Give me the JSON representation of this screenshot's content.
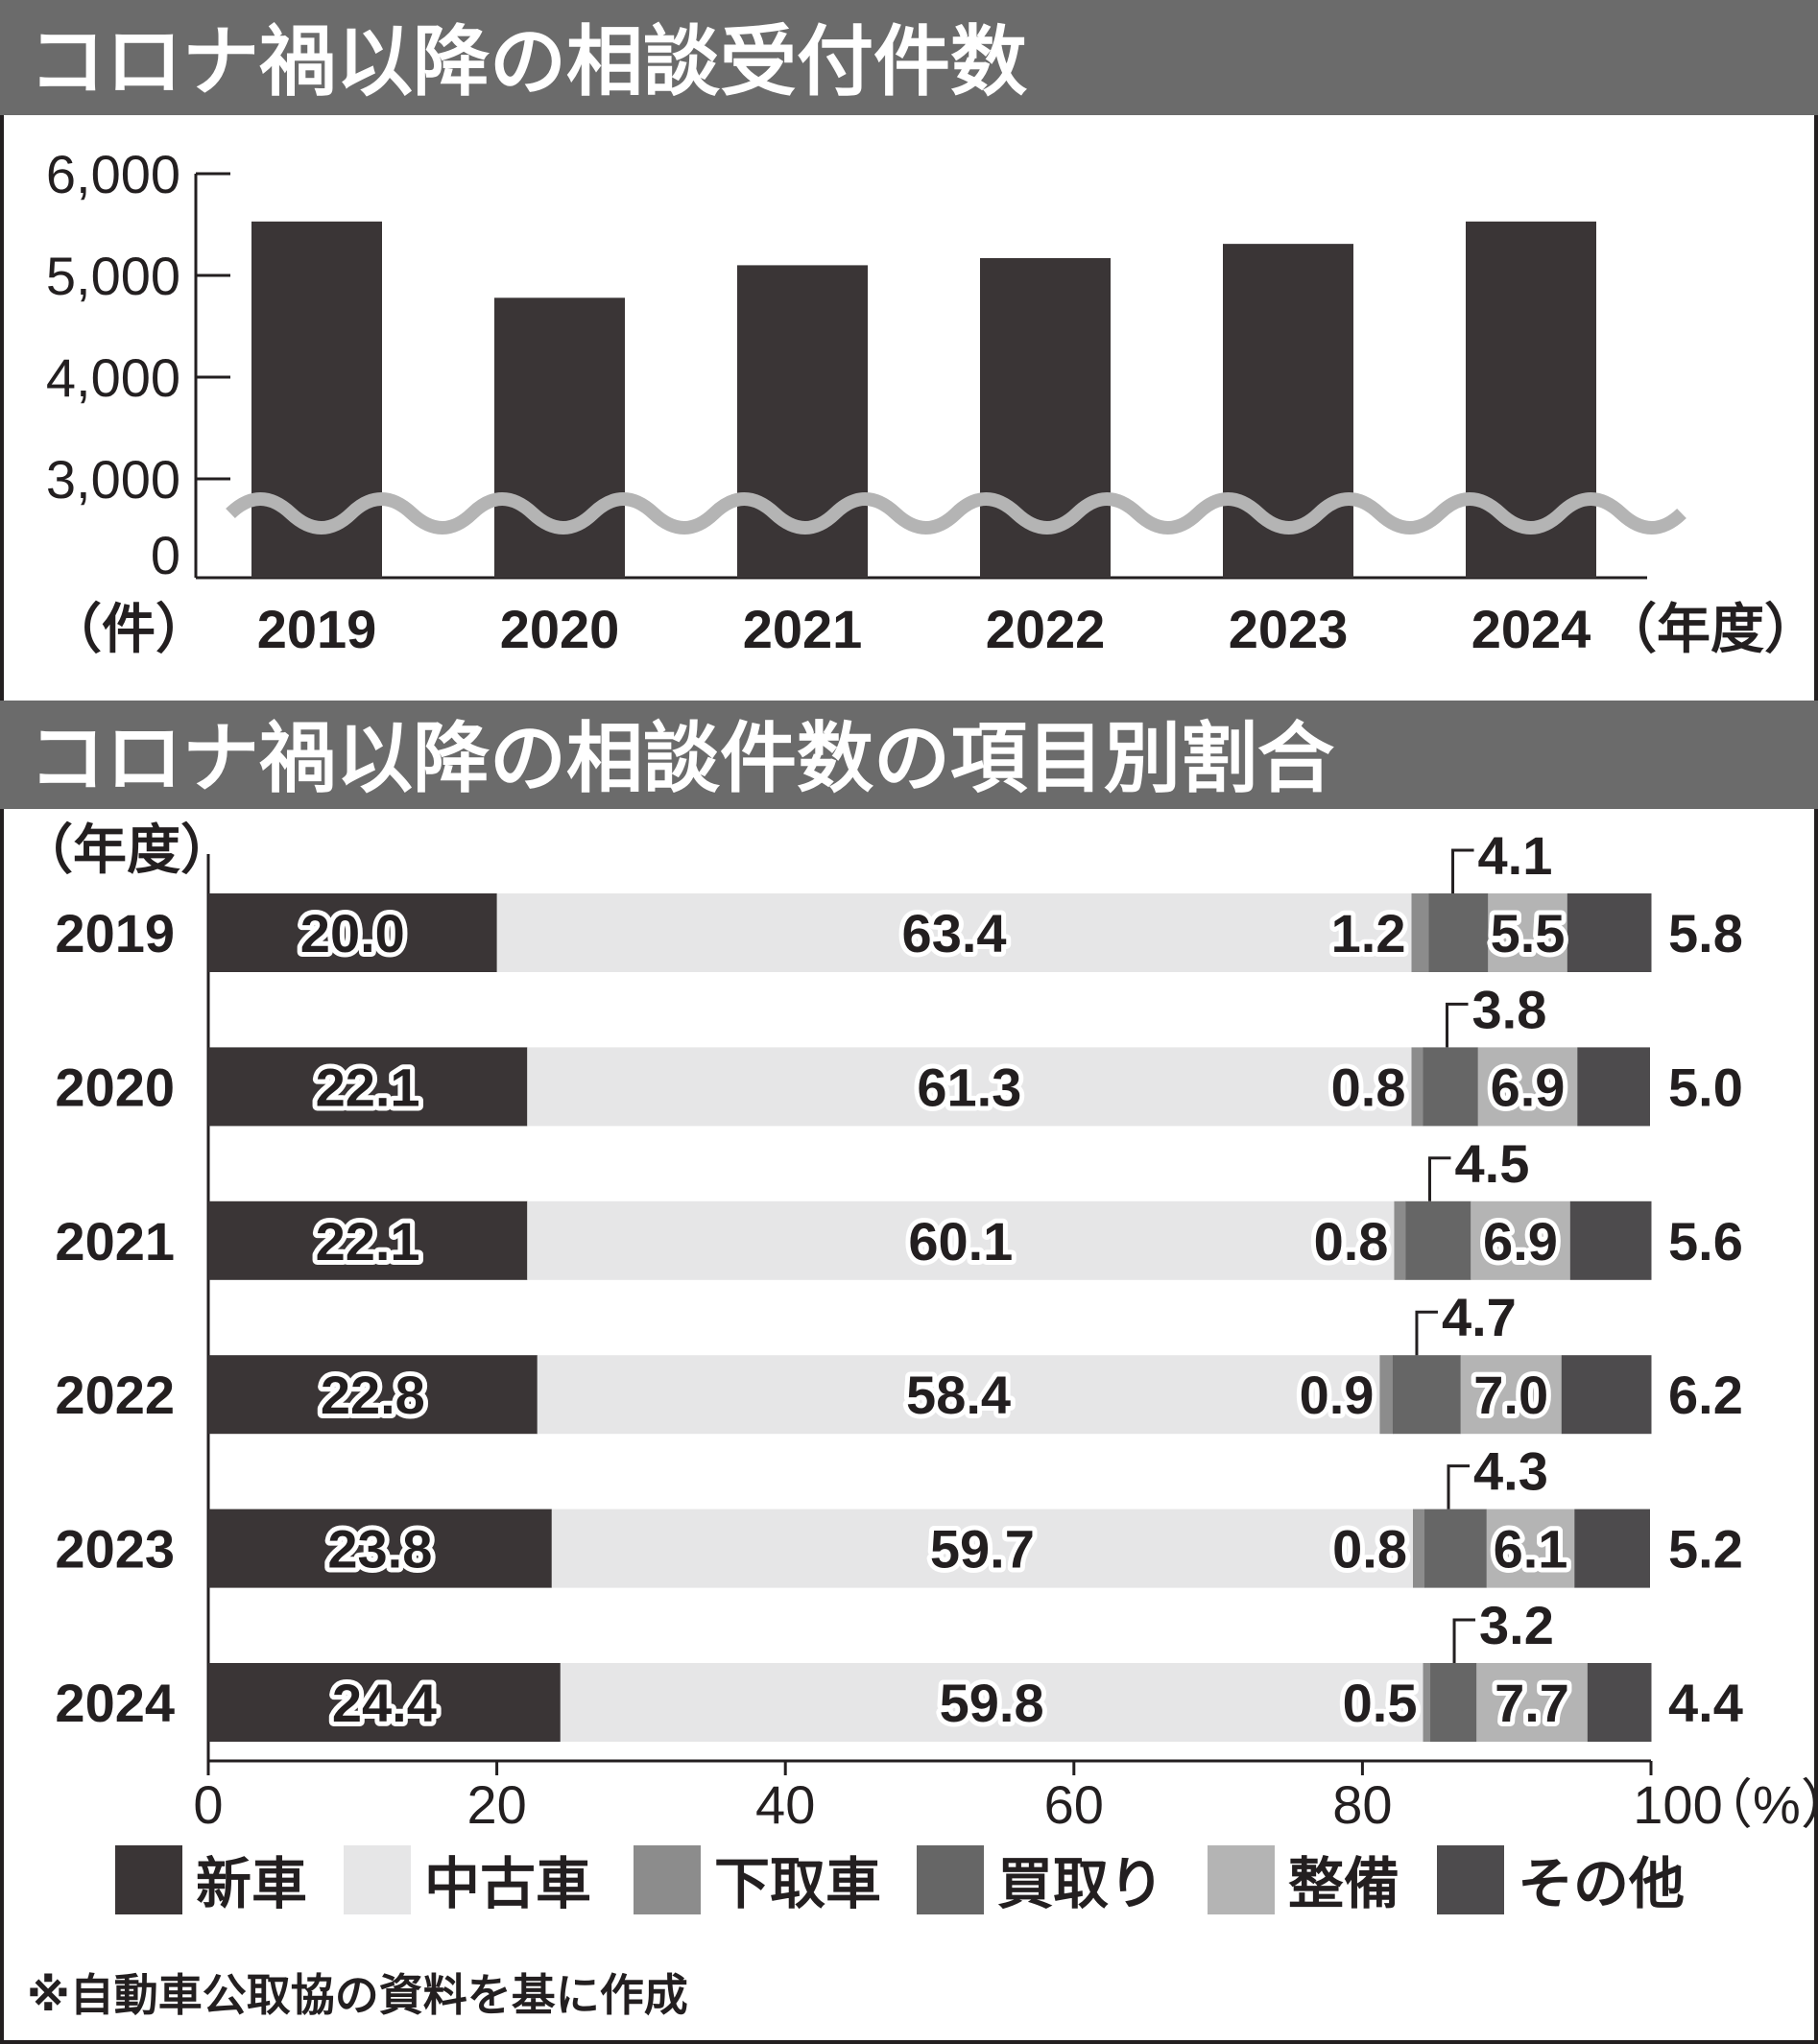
{
  "chart_data": [
    {
      "type": "bar",
      "title": "コロナ禍以降の相談受付件数",
      "ylabel": "（件）",
      "xlabel": "（年度）",
      "categories": [
        "2019",
        "2020",
        "2021",
        "2022",
        "2023",
        "2024"
      ],
      "values": [
        5530,
        4780,
        5100,
        5170,
        5310,
        5530
      ],
      "yticks": [
        "0",
        "3,000",
        "4,000",
        "5,000",
        "6,000"
      ],
      "ylim": [
        0,
        6000
      ],
      "axis_break": "0–3,000",
      "bar_color": "#3a3536",
      "break_color": "#b4b4b4"
    },
    {
      "type": "bar",
      "orientation": "horizontal-stacked",
      "title": "コロナ禍以降の相談件数の項目別割合",
      "ylabel": "（年度）",
      "xlabel": "（%）",
      "categories": [
        "2019",
        "2020",
        "2021",
        "2022",
        "2023",
        "2024"
      ],
      "xticks": [
        "0",
        "20",
        "40",
        "60",
        "80",
        "100"
      ],
      "xlim": [
        0,
        100
      ],
      "series": [
        {
          "name": "新車",
          "color": "#3a3536",
          "values": [
            20.0,
            22.1,
            22.1,
            22.8,
            23.8,
            24.4
          ],
          "labels": [
            "20.0",
            "22.1",
            "22.1",
            "22.8",
            "23.8",
            "24.4"
          ]
        },
        {
          "name": "中古車",
          "color": "#e6e6e7",
          "values": [
            63.4,
            61.3,
            60.1,
            58.4,
            59.7,
            59.8
          ],
          "labels": [
            "63.4",
            "61.3",
            "60.1",
            "58.4",
            "59.7",
            "59.8"
          ]
        },
        {
          "name": "下取車",
          "color": "#8c8c8c",
          "values": [
            1.2,
            0.8,
            0.8,
            0.9,
            0.8,
            0.5
          ],
          "labels": [
            "1.2",
            "0.8",
            "0.8",
            "0.9",
            "0.8",
            "0.5"
          ]
        },
        {
          "name": "買取り",
          "color": "#666666",
          "values": [
            4.1,
            3.8,
            4.5,
            4.7,
            4.3,
            3.2
          ],
          "labels": [
            "4.1",
            "3.8",
            "4.5",
            "4.7",
            "4.3",
            "3.2"
          ]
        },
        {
          "name": "整備",
          "color": "#b4b4b4",
          "values": [
            5.5,
            6.9,
            6.9,
            7.0,
            6.1,
            7.7
          ],
          "labels": [
            "5.5",
            "6.9",
            "6.9",
            "7.0",
            "6.1",
            "7.7"
          ]
        },
        {
          "name": "その他",
          "color": "#4d4b4d",
          "values": [
            5.8,
            5.0,
            5.6,
            6.2,
            5.2,
            4.4
          ],
          "labels": [
            "5.8",
            "5.0",
            "5.6",
            "6.2",
            "5.2",
            "4.4"
          ]
        }
      ],
      "legend": "bottom"
    }
  ],
  "footnote": "※自動車公取協の資料を基に作成"
}
